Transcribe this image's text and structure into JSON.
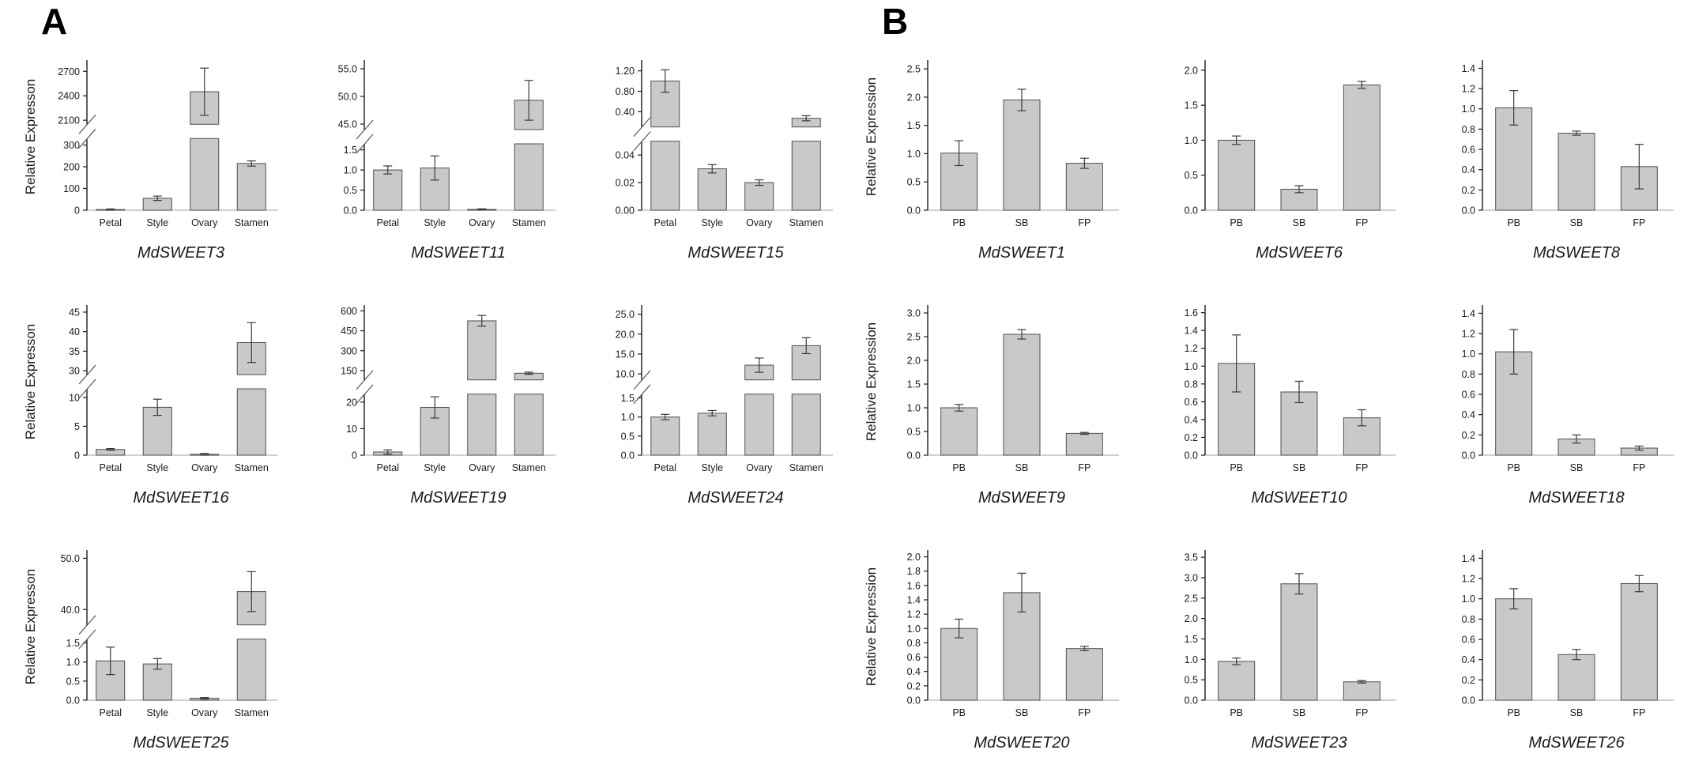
{
  "figure": {
    "panels": [
      {
        "label": "A",
        "ylabel": "Relative Expresson",
        "categories": [
          "Petal",
          "Style",
          "Ovary",
          "Stamen"
        ]
      },
      {
        "label": "B",
        "ylabel": "Relative Expression",
        "categories": [
          "PB",
          "SB",
          "FP"
        ]
      }
    ],
    "colors": {
      "bar_fill": "#c9c9c9",
      "bar_stroke": "#4f4f4f",
      "axis": "#1c1c1c",
      "baseline": "#b3b3b3",
      "error": "#3a3a3a",
      "break_mark": "#555555",
      "text": "#1a1a1a"
    }
  },
  "chart_data": [
    {
      "panel": "A",
      "type": "bar",
      "title": "MdSWEET3",
      "show_ylabel": true,
      "values": [
        3,
        55,
        2450,
        215
      ],
      "errors": [
        3,
        10,
        290,
        12
      ],
      "segments": [
        {
          "range": [
            0,
            330
          ],
          "ticks": [
            0,
            100,
            200,
            300
          ],
          "dec": 0,
          "frac": 0.54
        },
        {
          "range": [
            2050,
            2800
          ],
          "ticks": [
            2100,
            2400,
            2700
          ],
          "dec": 0,
          "frac": 0.46
        }
      ]
    },
    {
      "panel": "A",
      "type": "bar",
      "title": "MdSWEET11",
      "show_ylabel": false,
      "values": [
        1.0,
        1.05,
        0.02,
        49.3
      ],
      "errors": [
        0.1,
        0.3,
        0.015,
        3.6
      ],
      "segments": [
        {
          "range": [
            0,
            1.65
          ],
          "ticks": [
            0,
            0.5,
            1,
            1.5
          ],
          "dec": 1,
          "frac": 0.5
        },
        {
          "range": [
            44,
            56
          ],
          "ticks": [
            45,
            50,
            55
          ],
          "dec": 1,
          "frac": 0.5
        }
      ]
    },
    {
      "panel": "A",
      "type": "bar",
      "title": "MdSWEET15",
      "show_ylabel": false,
      "values": [
        1.0,
        0.03,
        0.02,
        0.27
      ],
      "errors": [
        0.22,
        0.003,
        0.002,
        0.05
      ],
      "segments": [
        {
          "range": [
            0,
            0.05
          ],
          "ticks": [
            0,
            0.02,
            0.04
          ],
          "dec": 2,
          "frac": 0.52
        },
        {
          "range": [
            0.1,
            1.35
          ],
          "ticks": [
            0.4,
            0.8,
            1.2
          ],
          "dec": 2,
          "frac": 0.48
        }
      ]
    },
    {
      "panel": "A",
      "type": "bar",
      "title": "MdSWEET16",
      "show_ylabel": true,
      "values": [
        1.0,
        8.3,
        0.15,
        37.2
      ],
      "errors": [
        0.15,
        1.4,
        0.15,
        5.1
      ],
      "segments": [
        {
          "range": [
            0,
            11.5
          ],
          "ticks": [
            0,
            5,
            10
          ],
          "dec": 0,
          "frac": 0.5
        },
        {
          "range": [
            29,
            46
          ],
          "ticks": [
            30,
            35,
            40,
            45
          ],
          "dec": 0,
          "frac": 0.5
        }
      ]
    },
    {
      "panel": "A",
      "type": "bar",
      "title": "MdSWEET19",
      "show_ylabel": false,
      "values": [
        1.2,
        18,
        525,
        130
      ],
      "errors": [
        0.8,
        4,
        40,
        8
      ],
      "segments": [
        {
          "range": [
            0,
            23
          ],
          "ticks": [
            0,
            10,
            20
          ],
          "dec": 0,
          "frac": 0.46
        },
        {
          "range": [
            80,
            620
          ],
          "ticks": [
            150,
            300,
            450,
            600
          ],
          "dec": 0,
          "frac": 0.54
        }
      ]
    },
    {
      "panel": "A",
      "type": "bar",
      "title": "MdSWEET24",
      "show_ylabel": false,
      "values": [
        1.0,
        1.1,
        12.2,
        17.1
      ],
      "errors": [
        0.07,
        0.07,
        1.8,
        2.0
      ],
      "segments": [
        {
          "range": [
            0,
            1.6
          ],
          "ticks": [
            0,
            0.5,
            1,
            1.5
          ],
          "dec": 1,
          "frac": 0.46
        },
        {
          "range": [
            8.5,
            26.5
          ],
          "ticks": [
            10,
            15,
            20,
            25
          ],
          "dec": 1,
          "frac": 0.54
        }
      ]
    },
    {
      "panel": "A",
      "type": "bar",
      "title": "MdSWEET25",
      "show_ylabel": true,
      "values": [
        1.03,
        0.95,
        0.05,
        43.5
      ],
      "errors": [
        0.36,
        0.14,
        0.02,
        3.9
      ],
      "segments": [
        {
          "range": [
            0,
            1.6
          ],
          "ticks": [
            0,
            0.5,
            1,
            1.5
          ],
          "dec": 1,
          "frac": 0.46
        },
        {
          "range": [
            37,
            51
          ],
          "ticks": [
            40,
            50
          ],
          "dec": 1,
          "frac": 0.54
        }
      ]
    },
    {
      "panel": "B",
      "type": "bar",
      "title": "MdSWEET1",
      "show_ylabel": true,
      "values": [
        1.01,
        1.95,
        0.83
      ],
      "errors": [
        0.22,
        0.19,
        0.09
      ],
      "segments": [
        {
          "range": [
            0,
            2.6
          ],
          "ticks": [
            0,
            0.5,
            1,
            1.5,
            2,
            2.5
          ],
          "dec": 1,
          "frac": 1
        }
      ]
    },
    {
      "panel": "B",
      "type": "bar",
      "title": "MdSWEET6",
      "show_ylabel": false,
      "values": [
        1.0,
        0.3,
        1.79
      ],
      "errors": [
        0.06,
        0.05,
        0.05
      ],
      "segments": [
        {
          "range": [
            0,
            2.1
          ],
          "ticks": [
            0,
            0.5,
            1,
            1.5,
            2
          ],
          "dec": 1,
          "frac": 1
        }
      ]
    },
    {
      "panel": "B",
      "type": "bar",
      "title": "MdSWEET8",
      "show_ylabel": false,
      "values": [
        1.01,
        0.76,
        0.43
      ],
      "errors": [
        0.17,
        0.02,
        0.22
      ],
      "segments": [
        {
          "range": [
            0,
            1.45
          ],
          "ticks": [
            0,
            0.2,
            0.4,
            0.6,
            0.8,
            1,
            1.2,
            1.4
          ],
          "dec": 1,
          "frac": 1
        }
      ]
    },
    {
      "panel": "B",
      "type": "bar",
      "title": "MdSWEET9",
      "show_ylabel": true,
      "values": [
        1.0,
        2.55,
        0.46
      ],
      "errors": [
        0.07,
        0.1,
        0.02
      ],
      "segments": [
        {
          "range": [
            0,
            3.1
          ],
          "ticks": [
            0,
            0.5,
            1,
            1.5,
            2,
            2.5,
            3
          ],
          "dec": 1,
          "frac": 1
        }
      ]
    },
    {
      "panel": "B",
      "type": "bar",
      "title": "MdSWEET10",
      "show_ylabel": false,
      "values": [
        1.03,
        0.71,
        0.42
      ],
      "errors": [
        0.32,
        0.12,
        0.09
      ],
      "segments": [
        {
          "range": [
            0,
            1.65
          ],
          "ticks": [
            0,
            0.2,
            0.4,
            0.6,
            0.8,
            1,
            1.2,
            1.4,
            1.6
          ],
          "dec": 1,
          "frac": 1
        }
      ]
    },
    {
      "panel": "B",
      "type": "bar",
      "title": "MdSWEET18",
      "show_ylabel": false,
      "values": [
        1.02,
        0.16,
        0.07
      ],
      "errors": [
        0.22,
        0.04,
        0.02
      ],
      "segments": [
        {
          "range": [
            0,
            1.45
          ],
          "ticks": [
            0,
            0.2,
            0.4,
            0.6,
            0.8,
            1,
            1.2,
            1.4
          ],
          "dec": 1,
          "frac": 1
        }
      ]
    },
    {
      "panel": "B",
      "type": "bar",
      "title": "MdSWEET20",
      "show_ylabel": true,
      "values": [
        1.0,
        1.5,
        0.72
      ],
      "errors": [
        0.13,
        0.27,
        0.03
      ],
      "segments": [
        {
          "range": [
            0,
            2.05
          ],
          "ticks": [
            0,
            0.2,
            0.4,
            0.6,
            0.8,
            1,
            1.2,
            1.4,
            1.6,
            1.8,
            2
          ],
          "dec": 1,
          "frac": 1
        }
      ]
    },
    {
      "panel": "B",
      "type": "bar",
      "title": "MdSWEET23",
      "show_ylabel": false,
      "values": [
        0.95,
        2.85,
        0.45
      ],
      "errors": [
        0.08,
        0.25,
        0.03
      ],
      "segments": [
        {
          "range": [
            0,
            3.6
          ],
          "ticks": [
            0,
            0.5,
            1,
            1.5,
            2,
            2.5,
            3,
            3.5
          ],
          "dec": 1,
          "frac": 1
        }
      ]
    },
    {
      "panel": "B",
      "type": "bar",
      "title": "MdSWEET26",
      "show_ylabel": false,
      "values": [
        1.0,
        0.45,
        1.15
      ],
      "errors": [
        0.1,
        0.05,
        0.08
      ],
      "segments": [
        {
          "range": [
            0,
            1.45
          ],
          "ticks": [
            0,
            0.2,
            0.4,
            0.6,
            0.8,
            1,
            1.2,
            1.4
          ],
          "dec": 1,
          "frac": 1
        }
      ]
    }
  ]
}
